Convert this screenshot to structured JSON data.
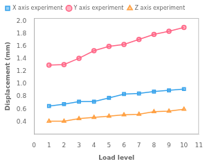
{
  "chart_data": {
    "type": "line",
    "x": [
      1,
      2,
      3,
      4,
      5,
      6,
      7,
      8,
      9,
      10
    ],
    "series": [
      {
        "name": "X axis experiment",
        "marker": "square",
        "values": [
          0.65,
          0.68,
          0.72,
          0.72,
          0.78,
          0.84,
          0.85,
          0.88,
          0.9,
          0.92
        ]
      },
      {
        "name": "Y axis experiment",
        "marker": "circle",
        "values": [
          1.3,
          1.31,
          1.41,
          1.53,
          1.6,
          1.63,
          1.71,
          1.79,
          1.84,
          1.9
        ]
      },
      {
        "name": "Z axis experiment",
        "marker": "triangle",
        "values": [
          0.41,
          0.41,
          0.45,
          0.47,
          0.49,
          0.51,
          0.52,
          0.56,
          0.57,
          0.6
        ]
      }
    ],
    "x_label": "Load level",
    "y_label": "Displacement (mm)",
    "xlim": [
      0,
      11
    ],
    "xticks": [
      0,
      1,
      2,
      3,
      4,
      5,
      6,
      7,
      8,
      9,
      10,
      11
    ],
    "ylim": [
      0.2,
      2.05
    ],
    "yticks": [
      0.4,
      0.6,
      0.8,
      {
        "value": 1,
        "label": "1.0"
      },
      1.2,
      1.4,
      1.6,
      1.8,
      {
        "value": 2,
        "label": "2.0"
      }
    ],
    "grid": false,
    "legend": "upper left"
  }
}
